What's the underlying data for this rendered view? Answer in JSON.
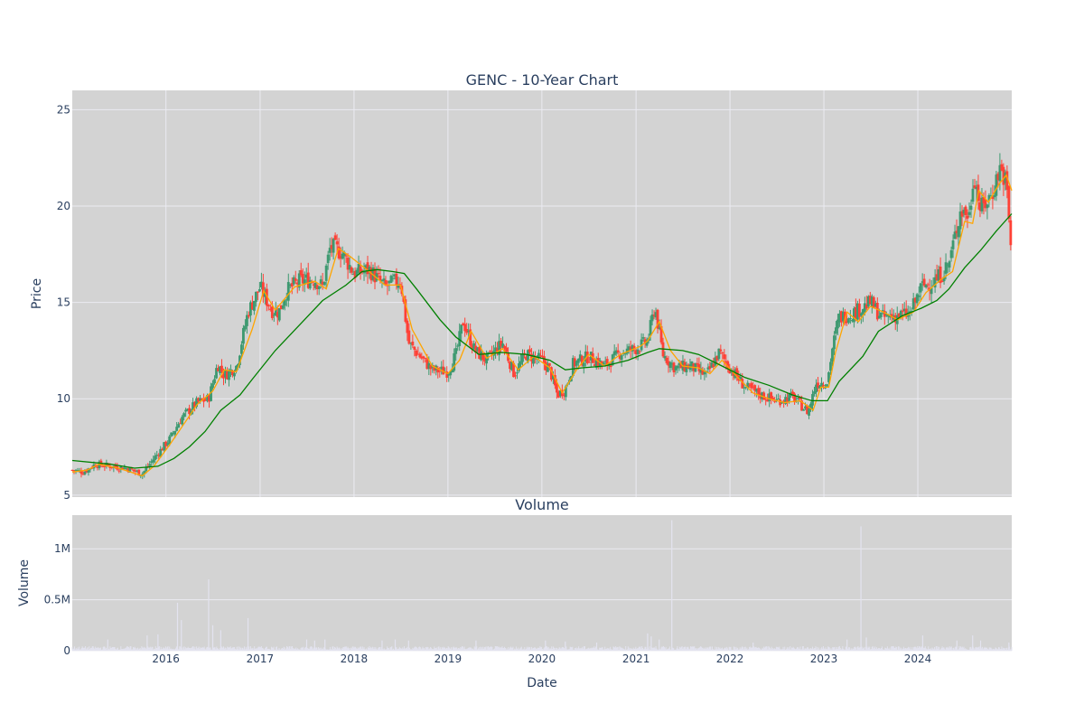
{
  "colors": {
    "plot_bg": "#d3d3d3",
    "grid": "#ebebf2",
    "up": "#3d9970",
    "down": "#ff4136",
    "ma_short": "#ffa500",
    "ma_long": "#008000",
    "volume": "#e3e3ef",
    "text": "#2a3f5f"
  },
  "chart_data": [
    {
      "type": "candlestick",
      "title": "GENC - 10-Year Chart",
      "xlabel": "",
      "ylabel": "Price",
      "xlim": [
        "2015-01-02",
        "2024-12-31"
      ],
      "ylim": [
        4.9,
        26
      ],
      "yticks": [
        5,
        10,
        15,
        20,
        25
      ],
      "xticks": [
        "2016",
        "2017",
        "2018",
        "2019",
        "2020",
        "2021",
        "2022",
        "2023",
        "2024"
      ],
      "grid": true,
      "legend": "none",
      "series": [
        {
          "kind": "candlestick",
          "close_anchors": [
            [
              "2015-01-02",
              6.3
            ],
            [
              "2015-02-15",
              6.2
            ],
            [
              "2015-04-01",
              6.6
            ],
            [
              "2015-06-01",
              6.5
            ],
            [
              "2015-08-01",
              6.4
            ],
            [
              "2015-10-01",
              6.1
            ],
            [
              "2015-11-15",
              6.9
            ],
            [
              "2016-01-15",
              7.9
            ],
            [
              "2016-03-01",
              9.0
            ],
            [
              "2016-05-01",
              9.8
            ],
            [
              "2016-06-15",
              10.0
            ],
            [
              "2016-07-20",
              11.8
            ],
            [
              "2016-08-15",
              11.2
            ],
            [
              "2016-10-01",
              11.7
            ],
            [
              "2016-11-15",
              14.5
            ],
            [
              "2017-01-01",
              15.8
            ],
            [
              "2017-02-15",
              14.6
            ],
            [
              "2017-03-15",
              14.5
            ],
            [
              "2017-04-15",
              15.6
            ],
            [
              "2017-06-01",
              16.1
            ],
            [
              "2017-08-01",
              16.2
            ],
            [
              "2017-09-01",
              15.8
            ],
            [
              "2017-10-01",
              17.9
            ],
            [
              "2017-11-15",
              17.6
            ],
            [
              "2018-01-01",
              16.5
            ],
            [
              "2018-03-01",
              16.7
            ],
            [
              "2018-05-01",
              15.8
            ],
            [
              "2018-07-01",
              16.2
            ],
            [
              "2018-08-01",
              12.9
            ],
            [
              "2018-09-01",
              12.4
            ],
            [
              "2018-11-01",
              11.5
            ],
            [
              "2019-01-01",
              11.4
            ],
            [
              "2019-02-01",
              12.3
            ],
            [
              "2019-03-01",
              14.0
            ],
            [
              "2019-04-15",
              12.5
            ],
            [
              "2019-06-01",
              12.0
            ],
            [
              "2019-08-01",
              12.9
            ],
            [
              "2019-09-15",
              11.3
            ],
            [
              "2019-11-01",
              12.3
            ],
            [
              "2020-01-01",
              12.0
            ],
            [
              "2020-02-01",
              11.5
            ],
            [
              "2020-03-01",
              10.2
            ],
            [
              "2020-04-01",
              10.5
            ],
            [
              "2020-05-01",
              11.8
            ],
            [
              "2020-07-01",
              12.2
            ],
            [
              "2020-09-01",
              11.7
            ],
            [
              "2020-11-01",
              12.4
            ],
            [
              "2021-01-01",
              12.6
            ],
            [
              "2021-02-15",
              13.0
            ],
            [
              "2021-03-15",
              14.8
            ],
            [
              "2021-04-15",
              12.3
            ],
            [
              "2021-06-01",
              11.6
            ],
            [
              "2021-08-01",
              11.7
            ],
            [
              "2021-10-01",
              11.2
            ],
            [
              "2021-11-20",
              12.4
            ],
            [
              "2022-01-01",
              11.6
            ],
            [
              "2022-03-01",
              10.6
            ],
            [
              "2022-05-01",
              10.2
            ],
            [
              "2022-07-01",
              9.9
            ],
            [
              "2022-09-01",
              10.1
            ],
            [
              "2022-11-01",
              9.3
            ],
            [
              "2022-12-01",
              10.8
            ],
            [
              "2023-01-15",
              10.9
            ],
            [
              "2023-02-01",
              12.5
            ],
            [
              "2023-03-01",
              14.2
            ],
            [
              "2023-05-01",
              14.5
            ],
            [
              "2023-07-01",
              15.0
            ],
            [
              "2023-08-15",
              14.2
            ],
            [
              "2023-10-01",
              14.3
            ],
            [
              "2023-12-01",
              14.4
            ],
            [
              "2024-01-15",
              15.8
            ],
            [
              "2024-03-15",
              16.2
            ],
            [
              "2024-05-01",
              17.0
            ],
            [
              "2024-06-15",
              19.8
            ],
            [
              "2024-07-20",
              19.5
            ],
            [
              "2024-08-05",
              21.8
            ],
            [
              "2024-09-01",
              19.8
            ],
            [
              "2024-10-15",
              20.6
            ],
            [
              "2024-11-15",
              22.0
            ],
            [
              "2024-12-10",
              21.2
            ],
            [
              "2024-12-31",
              17.2
            ]
          ]
        },
        {
          "kind": "line",
          "role": "short moving average",
          "color": "#ffa500",
          "values": [
            [
              "2015-01-02",
              6.2
            ],
            [
              "2015-03-01",
              6.3
            ],
            [
              "2015-04-15",
              6.6
            ],
            [
              "2015-07-01",
              6.4
            ],
            [
              "2015-10-01",
              6.0
            ],
            [
              "2015-11-15",
              6.5
            ],
            [
              "2016-01-15",
              7.6
            ],
            [
              "2016-03-01",
              8.5
            ],
            [
              "2016-05-01",
              9.7
            ],
            [
              "2016-07-01",
              10.4
            ],
            [
              "2016-08-15",
              11.5
            ],
            [
              "2016-10-01",
              11.4
            ],
            [
              "2016-12-01",
              13.6
            ],
            [
              "2017-01-15",
              15.6
            ],
            [
              "2017-03-01",
              14.6
            ],
            [
              "2017-05-15",
              15.8
            ],
            [
              "2017-08-01",
              16.1
            ],
            [
              "2017-09-15",
              15.7
            ],
            [
              "2017-11-01",
              17.8
            ],
            [
              "2017-12-15",
              17.4
            ],
            [
              "2018-03-01",
              16.6
            ],
            [
              "2018-05-01",
              15.9
            ],
            [
              "2018-07-01",
              15.9
            ],
            [
              "2018-08-15",
              13.6
            ],
            [
              "2018-11-01",
              11.7
            ],
            [
              "2019-01-01",
              11.3
            ],
            [
              "2019-02-15",
              12.0
            ],
            [
              "2019-04-01",
              13.5
            ],
            [
              "2019-06-01",
              12.1
            ],
            [
              "2019-08-01",
              12.6
            ],
            [
              "2019-10-01",
              11.5
            ],
            [
              "2019-12-01",
              12.2
            ],
            [
              "2020-02-01",
              11.6
            ],
            [
              "2020-03-20",
              10.3
            ],
            [
              "2020-05-15",
              11.5
            ],
            [
              "2020-07-01",
              12.3
            ],
            [
              "2020-09-01",
              11.7
            ],
            [
              "2020-11-01",
              12.3
            ],
            [
              "2021-01-15",
              12.7
            ],
            [
              "2021-02-15",
              13.0
            ],
            [
              "2021-04-01",
              14.0
            ],
            [
              "2021-05-15",
              12.5
            ],
            [
              "2021-07-01",
              11.7
            ],
            [
              "2021-09-01",
              11.6
            ],
            [
              "2021-10-15",
              11.3
            ],
            [
              "2021-12-01",
              12.0
            ],
            [
              "2022-02-01",
              11.1
            ],
            [
              "2022-04-01",
              10.3
            ],
            [
              "2022-06-01",
              10.0
            ],
            [
              "2022-08-01",
              9.8
            ],
            [
              "2022-10-01",
              9.9
            ],
            [
              "2022-11-20",
              9.4
            ],
            [
              "2022-12-20",
              10.6
            ],
            [
              "2023-01-20",
              10.6
            ],
            [
              "2023-02-15",
              12.4
            ],
            [
              "2023-04-01",
              14.5
            ],
            [
              "2023-05-15",
              14.0
            ],
            [
              "2023-07-01",
              14.8
            ],
            [
              "2023-08-20",
              14.5
            ],
            [
              "2023-10-15",
              14.1
            ],
            [
              "2023-12-15",
              14.5
            ],
            [
              "2024-02-01",
              15.5
            ],
            [
              "2024-04-01",
              16.2
            ],
            [
              "2024-05-15",
              16.6
            ],
            [
              "2024-07-01",
              19.2
            ],
            [
              "2024-08-01",
              19.1
            ],
            [
              "2024-08-25",
              20.8
            ],
            [
              "2024-10-01",
              20.2
            ],
            [
              "2024-11-15",
              21.2
            ],
            [
              "2024-12-10",
              21.6
            ],
            [
              "2024-12-31",
              20.8
            ]
          ]
        },
        {
          "kind": "line",
          "role": "long moving average",
          "color": "#008000",
          "values": [
            [
              "2015-01-02",
              6.8
            ],
            [
              "2015-06-01",
              6.6
            ],
            [
              "2015-09-01",
              6.4
            ],
            [
              "2015-12-01",
              6.5
            ],
            [
              "2016-02-01",
              6.9
            ],
            [
              "2016-04-01",
              7.5
            ],
            [
              "2016-06-01",
              8.3
            ],
            [
              "2016-08-01",
              9.4
            ],
            [
              "2016-10-15",
              10.2
            ],
            [
              "2016-12-01",
              11.0
            ],
            [
              "2017-03-01",
              12.5
            ],
            [
              "2017-06-01",
              13.8
            ],
            [
              "2017-09-01",
              15.1
            ],
            [
              "2017-12-01",
              15.9
            ],
            [
              "2018-02-01",
              16.6
            ],
            [
              "2018-04-01",
              16.7
            ],
            [
              "2018-06-01",
              16.6
            ],
            [
              "2018-07-15",
              16.5
            ],
            [
              "2018-09-01",
              15.7
            ],
            [
              "2018-12-01",
              14.1
            ],
            [
              "2019-02-01",
              13.2
            ],
            [
              "2019-05-01",
              12.3
            ],
            [
              "2019-08-01",
              12.4
            ],
            [
              "2019-11-01",
              12.3
            ],
            [
              "2020-02-01",
              12.0
            ],
            [
              "2020-04-01",
              11.5
            ],
            [
              "2020-06-01",
              11.6
            ],
            [
              "2020-09-01",
              11.7
            ],
            [
              "2020-12-01",
              12.0
            ],
            [
              "2021-02-15",
              12.4
            ],
            [
              "2021-04-01",
              12.6
            ],
            [
              "2021-07-01",
              12.5
            ],
            [
              "2021-09-01",
              12.3
            ],
            [
              "2021-12-01",
              11.7
            ],
            [
              "2022-03-01",
              11.1
            ],
            [
              "2022-06-01",
              10.7
            ],
            [
              "2022-09-01",
              10.2
            ],
            [
              "2022-11-15",
              9.9
            ],
            [
              "2023-01-15",
              9.9
            ],
            [
              "2023-03-01",
              10.9
            ],
            [
              "2023-06-01",
              12.2
            ],
            [
              "2023-08-01",
              13.5
            ],
            [
              "2023-11-01",
              14.3
            ],
            [
              "2024-01-15",
              14.7
            ],
            [
              "2024-03-15",
              15.1
            ],
            [
              "2024-05-01",
              15.7
            ],
            [
              "2024-07-01",
              16.8
            ],
            [
              "2024-09-01",
              17.7
            ],
            [
              "2024-11-01",
              18.7
            ],
            [
              "2024-12-31",
              19.6
            ]
          ]
        }
      ]
    },
    {
      "type": "bar",
      "title": "Volume",
      "xlabel": "Date",
      "ylabel": "Volume",
      "xlim": [
        "2015-01-02",
        "2024-12-31"
      ],
      "ylim": [
        0,
        1330000
      ],
      "yticks": [
        0,
        500000,
        1000000
      ],
      "ytick_labels": [
        "0",
        "0.5M",
        "1M"
      ],
      "xticks": [
        "2016",
        "2017",
        "2018",
        "2019",
        "2020",
        "2021",
        "2022",
        "2023",
        "2024"
      ],
      "grid": true,
      "legend": "none",
      "series": [
        {
          "kind": "bar",
          "baseline": 30000,
          "spikes": [
            [
              "2015-05-20",
              110000
            ],
            [
              "2015-10-20",
              150000
            ],
            [
              "2015-12-01",
              160000
            ],
            [
              "2016-02-15",
              470000
            ],
            [
              "2016-03-01",
              300000
            ],
            [
              "2016-06-15",
              700000
            ],
            [
              "2016-07-01",
              250000
            ],
            [
              "2016-08-01",
              200000
            ],
            [
              "2016-11-15",
              320000
            ],
            [
              "2017-07-01",
              110000
            ],
            [
              "2017-08-01",
              100000
            ],
            [
              "2017-09-10",
              110000
            ],
            [
              "2018-04-20",
              100000
            ],
            [
              "2018-06-10",
              110000
            ],
            [
              "2018-08-01",
              100000
            ],
            [
              "2019-04-20",
              100000
            ],
            [
              "2020-01-15",
              100000
            ],
            [
              "2020-04-01",
              90000
            ],
            [
              "2020-08-01",
              80000
            ],
            [
              "2021-02-15",
              170000
            ],
            [
              "2021-03-01",
              140000
            ],
            [
              "2021-04-01",
              110000
            ],
            [
              "2021-05-20",
              1280000
            ],
            [
              "2022-04-01",
              80000
            ],
            [
              "2023-04-01",
              110000
            ],
            [
              "2023-05-25",
              1220000
            ],
            [
              "2023-06-15",
              130000
            ],
            [
              "2024-01-20",
              150000
            ],
            [
              "2024-06-01",
              100000
            ],
            [
              "2024-08-01",
              150000
            ],
            [
              "2024-09-01",
              100000
            ],
            [
              "2024-12-20",
              80000
            ]
          ]
        }
      ]
    }
  ]
}
